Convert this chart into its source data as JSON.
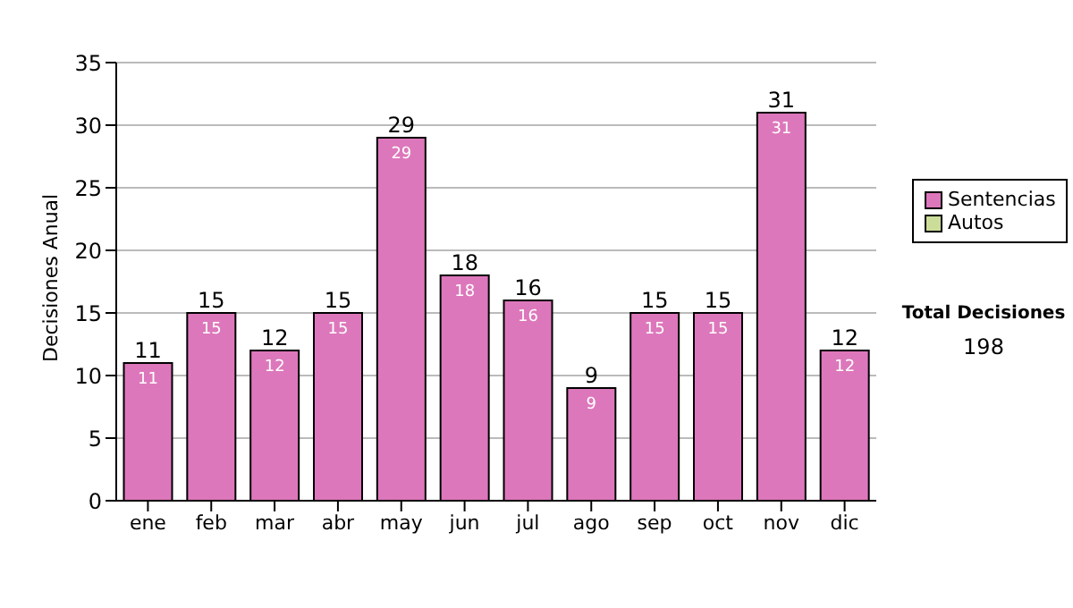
{
  "chart_data": {
    "type": "bar",
    "ylabel": "Decisiones Anual",
    "categories": [
      "ene",
      "feb",
      "mar",
      "abr",
      "may",
      "jun",
      "jul",
      "ago",
      "sep",
      "oct",
      "nov",
      "dic"
    ],
    "series": [
      {
        "name": "Sentencias",
        "color": "#dd77bb",
        "values": [
          11,
          15,
          12,
          15,
          29,
          18,
          16,
          9,
          15,
          15,
          31,
          12
        ],
        "value_labels": [
          "11",
          "15",
          "12",
          "15",
          "29",
          "18",
          "16",
          "9",
          "15",
          "15",
          "31",
          "12"
        ]
      },
      {
        "name": "Autos",
        "color": "#ccdd99",
        "values": [
          null,
          null,
          null,
          null,
          null,
          null,
          null,
          null,
          null,
          null,
          null,
          null
        ]
      }
    ],
    "stacked": true,
    "totals": [
      "11",
      "15",
      "12",
      "15",
      "29",
      "18",
      "16",
      "9",
      "15",
      "15",
      "31",
      "12"
    ],
    "ylim": [
      0,
      35
    ],
    "yticks": [
      0,
      5,
      10,
      15,
      20,
      25,
      30,
      35
    ],
    "grid": "y",
    "legend": "right",
    "annotations": [
      "Total Decisiones",
      "198"
    ]
  }
}
